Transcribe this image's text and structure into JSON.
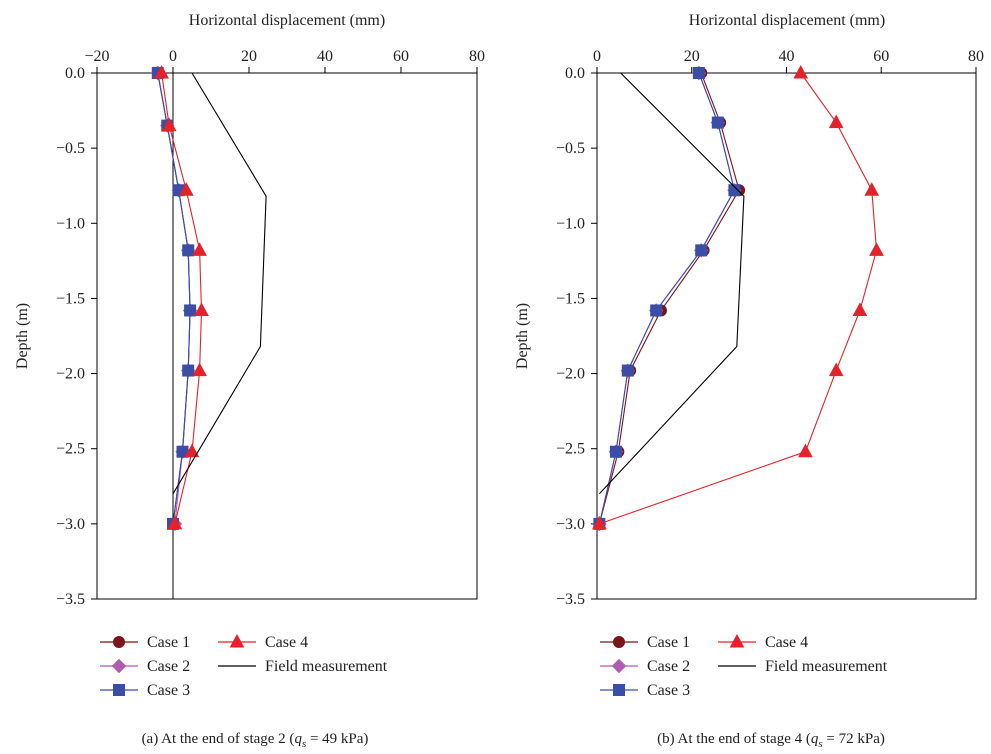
{
  "chart_data": [
    {
      "type": "line",
      "xlabel": "Horizontal displacement (mm)",
      "ylabel": "Depth (m)",
      "xlim": [
        -20,
        80
      ],
      "ylim": [
        -3.5,
        0
      ],
      "xticks": [
        "−20",
        "0",
        "20",
        "40",
        "60",
        "80"
      ],
      "xtick_values": [
        -20,
        0,
        20,
        40,
        60,
        80
      ],
      "yticks": [
        "0.0",
        "−0.5",
        "−1.0",
        "−1.5",
        "−2.0",
        "−2.5",
        "−3.0",
        "−3.5"
      ],
      "ytick_values": [
        0,
        -0.5,
        -1.0,
        -1.5,
        -2.0,
        -2.5,
        -3.0,
        -3.5
      ],
      "grid": false,
      "legend_position": "bottom",
      "caption": {
        "prefix": "(a)  At the end of stage 2 (",
        "q": "q",
        "sub": "s",
        "suffix": " = 49 kPa)"
      },
      "zero_line": true,
      "series": [
        {
          "name": "Case 1",
          "marker": "circle",
          "color": "#7a1518",
          "x": [
            -4.0,
            -1.5,
            1.5,
            4.0,
            4.5,
            4.0,
            2.5,
            0.0
          ],
          "y": [
            0.0,
            -0.35,
            -0.78,
            -1.18,
            -1.58,
            -1.98,
            -2.52,
            -3.0
          ]
        },
        {
          "name": "Case 2",
          "marker": "diamond",
          "color": "#b05bb0",
          "x": [
            -4.0,
            -1.5,
            1.5,
            4.0,
            4.5,
            4.0,
            2.5,
            0.5
          ],
          "y": [
            0.0,
            -0.35,
            -0.78,
            -1.18,
            -1.58,
            -1.98,
            -2.52,
            -3.0
          ]
        },
        {
          "name": "Case 3",
          "marker": "square",
          "color": "#3a4ea8",
          "x": [
            -4.0,
            -1.5,
            1.5,
            4.0,
            4.5,
            4.0,
            2.5,
            0.0
          ],
          "y": [
            0.0,
            -0.35,
            -0.78,
            -1.18,
            -1.58,
            -1.98,
            -2.52,
            -3.0
          ]
        },
        {
          "name": "Case 4",
          "marker": "triangle",
          "color": "#e3222a",
          "x": [
            -3.0,
            -1.0,
            3.5,
            7.0,
            7.5,
            7.0,
            5.0,
            0.5
          ],
          "y": [
            0.0,
            -0.35,
            -0.78,
            -1.18,
            -1.58,
            -1.98,
            -2.52,
            -3.0
          ]
        },
        {
          "name": "Field measurement",
          "marker": "none",
          "color": "#000000",
          "x": [
            5.0,
            24.5,
            23.0,
            0.0
          ],
          "y": [
            0.0,
            -0.82,
            -1.82,
            -2.8
          ]
        }
      ]
    },
    {
      "type": "line",
      "xlabel": "Horizontal displacement (mm)",
      "ylabel": "Depth (m)",
      "xlim": [
        0,
        80
      ],
      "ylim": [
        -3.5,
        0
      ],
      "xticks": [
        "0",
        "20",
        "40",
        "60",
        "80"
      ],
      "xtick_values": [
        0,
        20,
        40,
        60,
        80
      ],
      "yticks": [
        "0.0",
        "−0.5",
        "−1.0",
        "−1.5",
        "−2.0",
        "−2.5",
        "−3.0",
        "−3.5"
      ],
      "ytick_values": [
        0,
        -0.5,
        -1.0,
        -1.5,
        -2.0,
        -2.5,
        -3.0,
        -3.5
      ],
      "grid": false,
      "legend_position": "bottom",
      "caption": {
        "prefix": "(b)  At the end of stage 4 (",
        "q": "q",
        "sub": "s",
        "suffix": " = 72 kPa)"
      },
      "zero_line": false,
      "series": [
        {
          "name": "Case 1",
          "marker": "circle",
          "color": "#7a1518",
          "x": [
            22.0,
            26.0,
            30.0,
            22.5,
            13.5,
            7.0,
            4.5,
            0.5
          ],
          "y": [
            0.0,
            -0.33,
            -0.78,
            -1.18,
            -1.58,
            -1.98,
            -2.52,
            -3.0
          ]
        },
        {
          "name": "Case 2",
          "marker": "diamond",
          "color": "#b05bb0",
          "x": [
            21.5,
            25.5,
            29.0,
            22.0,
            12.5,
            6.5,
            4.0,
            0.5
          ],
          "y": [
            0.0,
            -0.33,
            -0.78,
            -1.18,
            -1.58,
            -1.98,
            -2.52,
            -3.0
          ]
        },
        {
          "name": "Case 3",
          "marker": "square",
          "color": "#3a4ea8",
          "x": [
            21.5,
            25.5,
            29.0,
            22.0,
            12.5,
            6.5,
            4.0,
            0.5
          ],
          "y": [
            0.0,
            -0.33,
            -0.78,
            -1.18,
            -1.58,
            -1.98,
            -2.52,
            -3.0
          ]
        },
        {
          "name": "Case 4",
          "marker": "triangle",
          "color": "#e3222a",
          "x": [
            43.0,
            50.5,
            58.0,
            59.0,
            55.5,
            50.5,
            44.0,
            0.5
          ],
          "y": [
            0.0,
            -0.33,
            -0.78,
            -1.18,
            -1.58,
            -1.98,
            -2.52,
            -3.0
          ]
        },
        {
          "name": "Field measurement",
          "marker": "none",
          "color": "#000000",
          "x": [
            5.0,
            31.0,
            29.5,
            0.5
          ],
          "y": [
            0.0,
            -0.82,
            -1.82,
            -2.8
          ]
        }
      ]
    }
  ]
}
